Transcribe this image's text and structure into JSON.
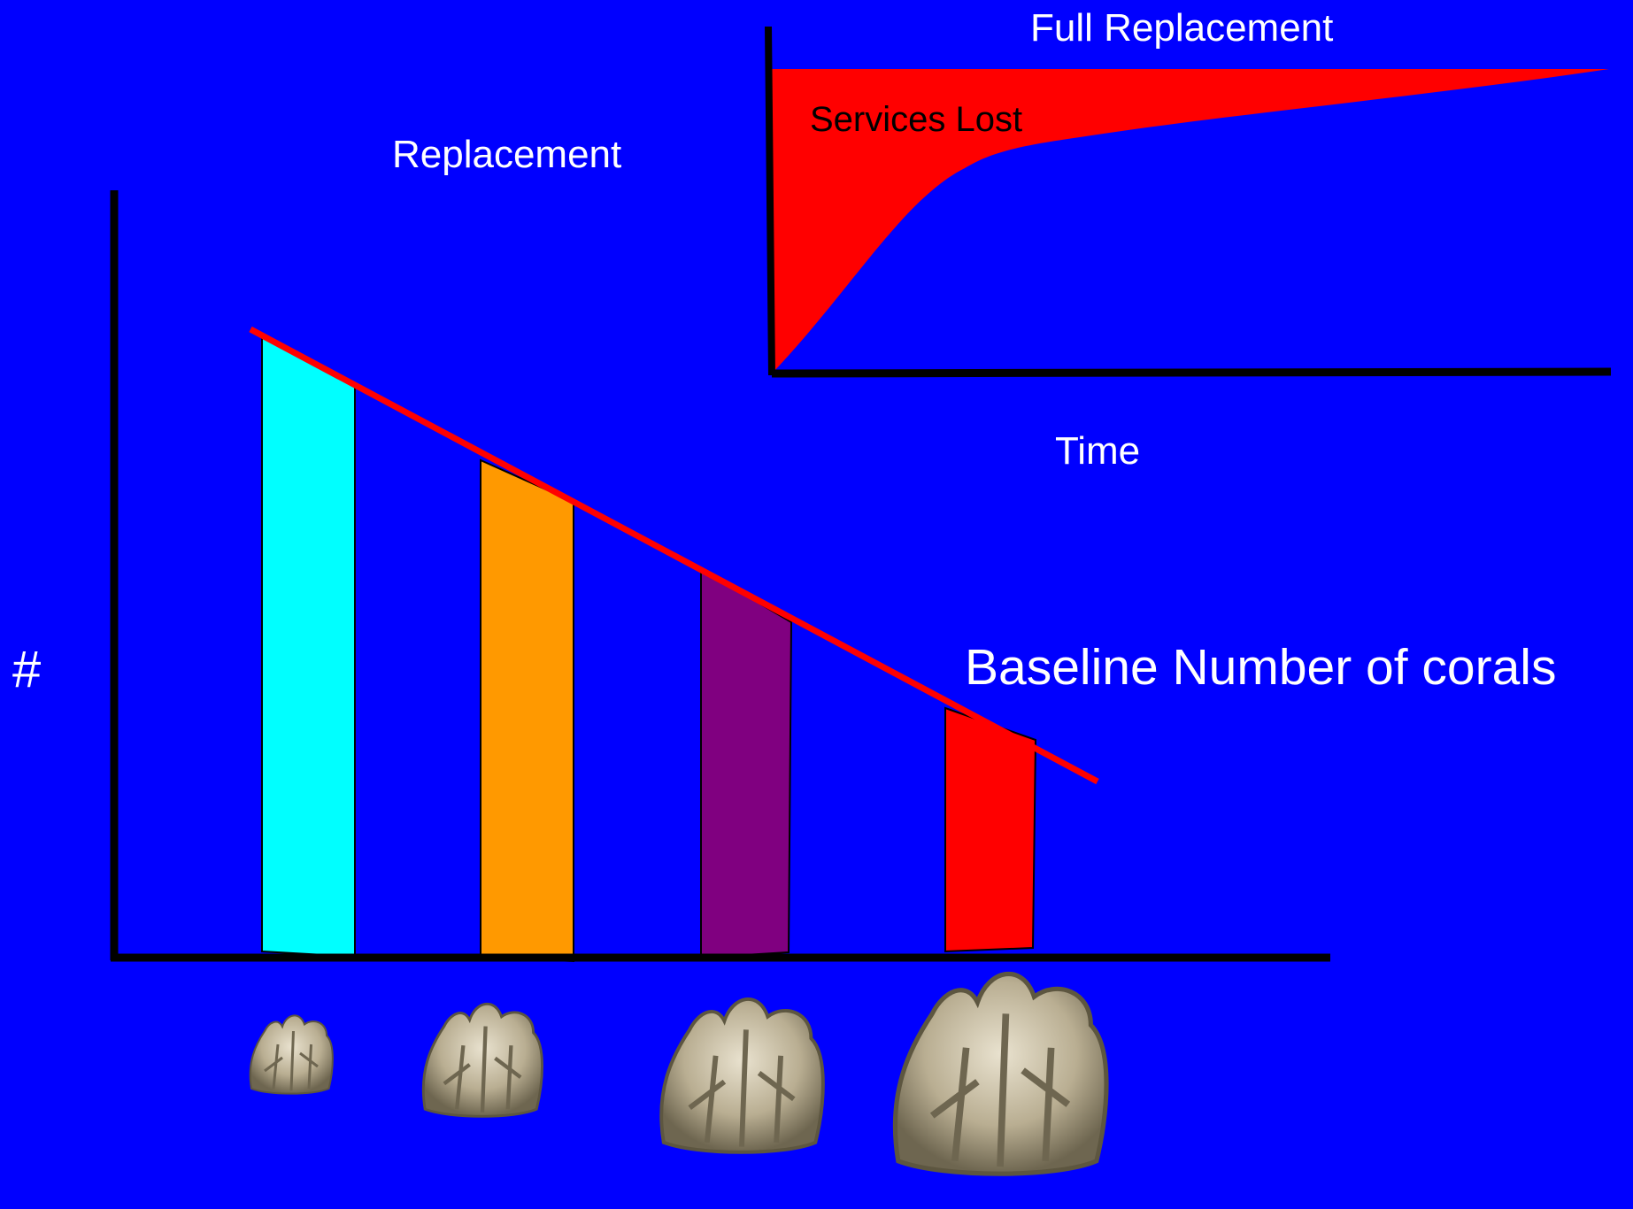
{
  "labels": {
    "full_replacement": "Full Replacement",
    "services_lost": "Services Lost",
    "replacement": "Replacement",
    "time": "Time",
    "hash": "#",
    "baseline": "Baseline Number of corals"
  },
  "colors": {
    "background": "#0000ff",
    "axis": "#000000",
    "services_area": "#ff0000",
    "trend_line": "#ff0000",
    "text": "#ffffff"
  },
  "coral_bars": [
    {
      "name": "cyan-bar",
      "color": "#00ffff"
    },
    {
      "name": "orange-bar",
      "color": "#ff9900"
    },
    {
      "name": "purple-bar",
      "color": "#800080"
    },
    {
      "name": "red-bar",
      "color": "#ff0000"
    }
  ],
  "coral_icons": [
    "coral-icon",
    "coral-icon",
    "coral-icon",
    "coral-icon"
  ]
}
